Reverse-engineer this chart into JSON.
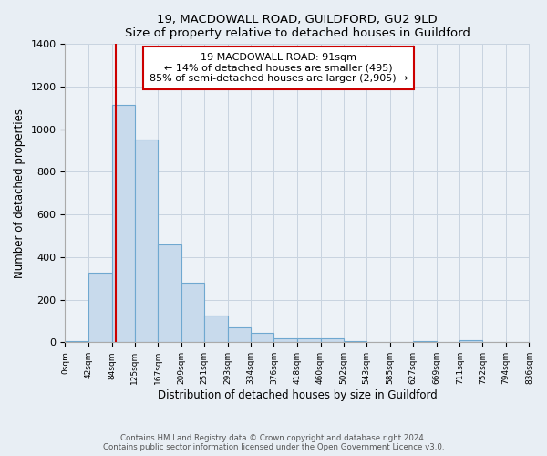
{
  "title": "19, MACDOWALL ROAD, GUILDFORD, GU2 9LD",
  "subtitle": "Size of property relative to detached houses in Guildford",
  "xlabel": "Distribution of detached houses by size in Guildford",
  "ylabel": "Number of detached properties",
  "bin_labels": [
    "0sqm",
    "42sqm",
    "84sqm",
    "125sqm",
    "167sqm",
    "209sqm",
    "251sqm",
    "293sqm",
    "334sqm",
    "376sqm",
    "418sqm",
    "460sqm",
    "502sqm",
    "543sqm",
    "585sqm",
    "627sqm",
    "669sqm",
    "711sqm",
    "752sqm",
    "794sqm",
    "836sqm"
  ],
  "bar_values": [
    5,
    325,
    1115,
    950,
    460,
    280,
    125,
    70,
    45,
    20,
    20,
    20,
    5,
    0,
    0,
    5,
    0,
    10,
    0,
    0
  ],
  "bar_color": "#c8daec",
  "bar_edgecolor": "#6fa8d0",
  "vline_x": 91,
  "vline_color": "#cc0000",
  "annotation_title": "19 MACDOWALL ROAD: 91sqm",
  "annotation_line1": "← 14% of detached houses are smaller (495)",
  "annotation_line2": "85% of semi-detached houses are larger (2,905) →",
  "annotation_box_edgecolor": "#cc0000",
  "ylim": [
    0,
    1400
  ],
  "yticks": [
    0,
    200,
    400,
    600,
    800,
    1000,
    1200,
    1400
  ],
  "footnote1": "Contains HM Land Registry data © Crown copyright and database right 2024.",
  "footnote2": "Contains public sector information licensed under the Open Government Licence v3.0.",
  "bg_color": "#e8eef4",
  "plot_bg_color": "#edf2f7",
  "grid_color": "#c8d4e0"
}
